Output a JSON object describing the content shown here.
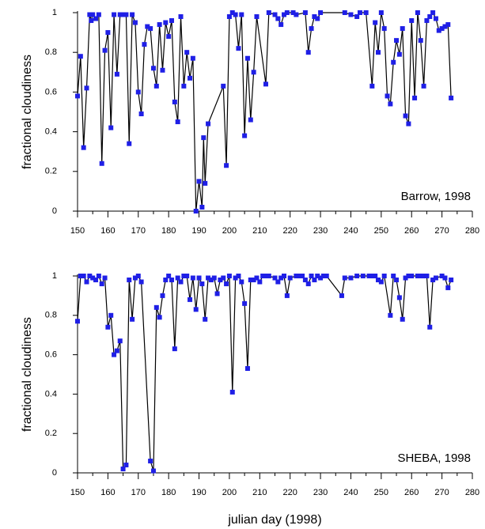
{
  "chart_data": [
    {
      "type": "line",
      "y_label": "fractional cloudiness",
      "annotation": "Barrow, 1998",
      "xlim": [
        150,
        280
      ],
      "xticks": [
        150,
        160,
        170,
        180,
        190,
        200,
        210,
        220,
        230,
        240,
        250,
        260,
        270,
        280
      ],
      "xminorticks": [
        155,
        165,
        175,
        185,
        195,
        205,
        215,
        225,
        235,
        245,
        255,
        265,
        275
      ],
      "ylim": [
        0,
        1
      ],
      "yticks": [
        0,
        0.2,
        0.4,
        0.6,
        0.8,
        1
      ],
      "x": [
        150,
        151,
        152,
        153,
        154,
        154.5,
        155,
        156,
        157,
        158,
        159,
        160,
        161,
        162,
        163,
        164,
        165,
        166,
        167,
        168,
        169,
        170,
        171,
        172,
        173,
        174,
        175,
        176,
        177,
        178,
        179,
        180,
        181,
        182,
        183,
        184,
        185,
        186,
        187,
        188,
        189,
        190,
        191,
        191.5,
        192,
        193,
        198,
        199,
        200,
        201,
        202,
        203,
        204,
        205,
        206,
        207,
        208,
        209,
        212,
        213,
        215,
        216,
        217,
        218,
        219,
        221,
        222,
        225,
        226,
        227,
        228,
        229,
        230,
        238,
        240,
        242,
        243,
        245,
        247,
        248,
        249,
        250,
        251,
        252,
        253,
        254,
        255,
        256,
        257,
        258,
        259,
        260,
        261,
        262,
        263,
        264,
        265,
        266,
        267,
        268,
        269,
        270,
        271,
        272,
        273
      ],
      "series": [
        {
          "color": "#1f1fe6",
          "line_color": "#000000",
          "values": [
            0.58,
            0.78,
            0.32,
            0.62,
            0.99,
            0.96,
            0.99,
            0.97,
            0.99,
            0.24,
            0.81,
            0.9,
            0.42,
            0.99,
            0.69,
            0.99,
            0.99,
            0.99,
            0.34,
            0.99,
            0.95,
            0.6,
            0.49,
            0.84,
            0.93,
            0.92,
            0.72,
            0.63,
            0.94,
            0.71,
            0.95,
            0.88,
            0.96,
            0.55,
            0.45,
            0.98,
            0.63,
            0.8,
            0.67,
            0.77,
            0.0,
            0.15,
            0.02,
            0.37,
            0.14,
            0.44,
            0.63,
            0.23,
            0.98,
            1.0,
            0.99,
            0.82,
            0.99,
            0.38,
            0.77,
            0.46,
            0.7,
            0.98,
            0.64,
            1.0,
            0.99,
            0.97,
            0.94,
            0.99,
            1.0,
            1.0,
            0.99,
            1.0,
            0.8,
            0.92,
            0.98,
            0.97,
            1.0,
            1.0,
            0.99,
            0.98,
            1.0,
            1.0,
            0.63,
            0.95,
            0.8,
            1.0,
            0.92,
            0.58,
            0.54,
            0.75,
            0.86,
            0.79,
            0.92,
            0.48,
            0.44,
            0.96,
            0.57,
            1.0,
            0.86,
            0.63,
            0.96,
            0.98,
            1.0,
            0.97,
            0.91,
            0.92,
            0.93,
            0.94,
            0.57
          ]
        }
      ]
    },
    {
      "type": "line",
      "y_label": "fractional cloudiness",
      "annotation": "SHEBA, 1998",
      "x_label": "julian day (1998)",
      "xlim": [
        150,
        280
      ],
      "xticks": [
        150,
        160,
        170,
        180,
        190,
        200,
        210,
        220,
        230,
        240,
        250,
        260,
        270,
        280
      ],
      "xminorticks": [
        155,
        165,
        175,
        185,
        195,
        205,
        215,
        225,
        235,
        245,
        255,
        265,
        275
      ],
      "ylim": [
        0,
        1
      ],
      "yticks": [
        0,
        0.2,
        0.4,
        0.6,
        0.8,
        1
      ],
      "x": [
        150,
        151,
        152,
        153,
        154,
        155,
        156,
        157,
        158,
        159,
        160,
        161,
        162,
        163,
        164,
        165,
        166,
        167,
        168,
        169,
        170,
        171,
        174,
        175,
        176,
        177,
        178,
        179,
        180,
        181,
        182,
        183,
        184,
        185,
        186,
        187,
        188,
        189,
        190,
        191,
        192,
        193,
        194,
        195,
        196,
        197,
        198,
        199,
        200,
        201,
        202,
        203,
        204,
        205,
        206,
        207,
        208,
        209,
        210,
        211,
        212,
        213,
        215,
        216,
        217,
        218,
        219,
        220,
        222,
        223,
        224,
        225,
        226,
        227,
        228,
        229,
        230,
        231,
        232,
        237,
        238,
        240,
        242,
        244,
        246,
        247,
        248,
        249,
        250,
        251,
        253,
        254,
        255,
        256,
        257,
        258,
        259,
        260,
        262,
        263,
        264,
        265,
        266,
        267,
        268,
        270,
        271,
        272,
        273
      ],
      "series": [
        {
          "color": "#1f1fe6",
          "line_color": "#000000",
          "values": [
            0.77,
            1.0,
            1.0,
            0.97,
            1.0,
            0.99,
            0.98,
            1.0,
            0.96,
            0.99,
            0.74,
            0.8,
            0.6,
            0.62,
            0.67,
            0.02,
            0.04,
            0.98,
            0.78,
            0.99,
            1.0,
            0.97,
            0.06,
            0.01,
            0.84,
            0.79,
            0.9,
            0.98,
            1.0,
            0.98,
            0.63,
            0.99,
            0.97,
            1.0,
            1.0,
            0.88,
            0.99,
            0.83,
            0.99,
            0.96,
            0.78,
            0.99,
            0.98,
            0.99,
            0.91,
            0.98,
            0.99,
            0.96,
            1.0,
            0.41,
            0.99,
            1.0,
            0.97,
            0.86,
            0.53,
            0.98,
            0.98,
            0.99,
            0.97,
            1.0,
            1.0,
            1.0,
            0.99,
            0.97,
            0.99,
            1.0,
            0.9,
            0.99,
            1.0,
            1.0,
            1.0,
            0.98,
            0.96,
            1.0,
            0.98,
            1.0,
            0.99,
            1.0,
            1.0,
            0.9,
            0.99,
            0.99,
            1.0,
            1.0,
            1.0,
            1.0,
            1.0,
            0.98,
            0.97,
            1.0,
            0.8,
            1.0,
            0.98,
            0.89,
            0.78,
            0.99,
            1.0,
            1.0,
            1.0,
            1.0,
            1.0,
            1.0,
            0.74,
            0.98,
            0.99,
            1.0,
            0.99,
            0.94,
            0.98
          ]
        }
      ]
    }
  ]
}
